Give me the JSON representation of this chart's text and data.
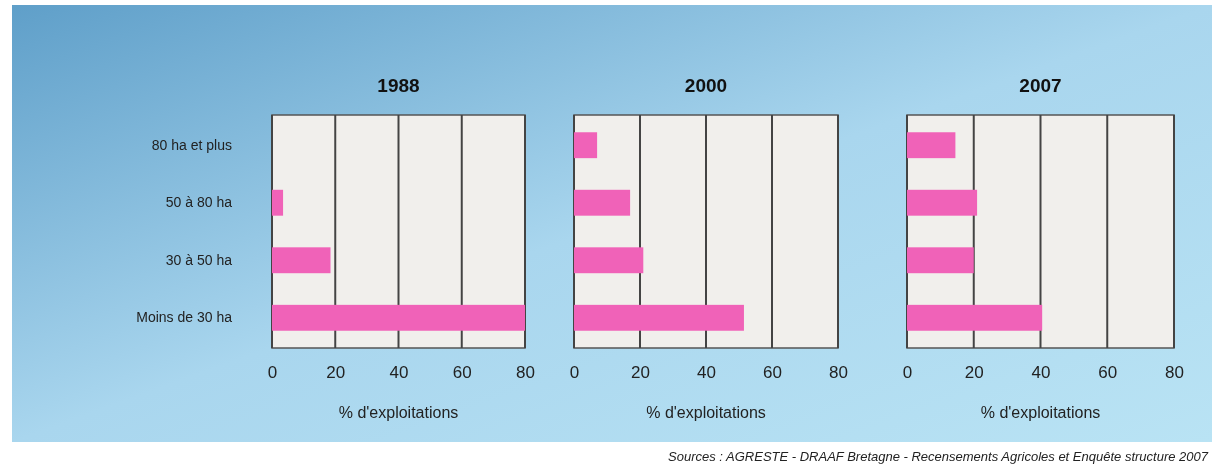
{
  "chart_data": [
    {
      "type": "bar",
      "orientation": "horizontal",
      "title": "1988",
      "xlabel": "% d'exploitations",
      "categories": [
        "80 ha et plus",
        "50 à 80 ha",
        "30 à 50 ha",
        "Moins de 30 ha"
      ],
      "values": [
        0,
        3.5,
        18.5,
        80
      ],
      "color": "#f062b8",
      "xlim": [
        0,
        80
      ],
      "xticks": [
        0,
        20,
        40,
        60,
        80
      ],
      "grid": "x"
    },
    {
      "type": "bar",
      "orientation": "horizontal",
      "title": "2000",
      "xlabel": "% d'exploitations",
      "categories": [
        null,
        null,
        null,
        null
      ],
      "values": [
        7,
        17,
        21,
        51.5
      ],
      "color": "#f062b8",
      "xlim": [
        0,
        80
      ],
      "xticks": [
        0,
        20,
        40,
        60,
        80
      ],
      "grid": "x"
    },
    {
      "type": "bar",
      "orientation": "horizontal",
      "title": "2007",
      "xlabel": "% d'exploitations",
      "categories": [
        null,
        null,
        null,
        null
      ],
      "values": [
        14.5,
        21,
        20,
        40.5
      ],
      "color": "#f062b8",
      "xlim": [
        0,
        80
      ],
      "xticks": [
        0,
        20,
        40,
        60,
        80
      ],
      "grid": "x",
      "annotations": [
        "Sources : AGRESTE - DRAAF Bretagne - Recensements Agricoles et Enquête structure 2007"
      ]
    }
  ]
}
